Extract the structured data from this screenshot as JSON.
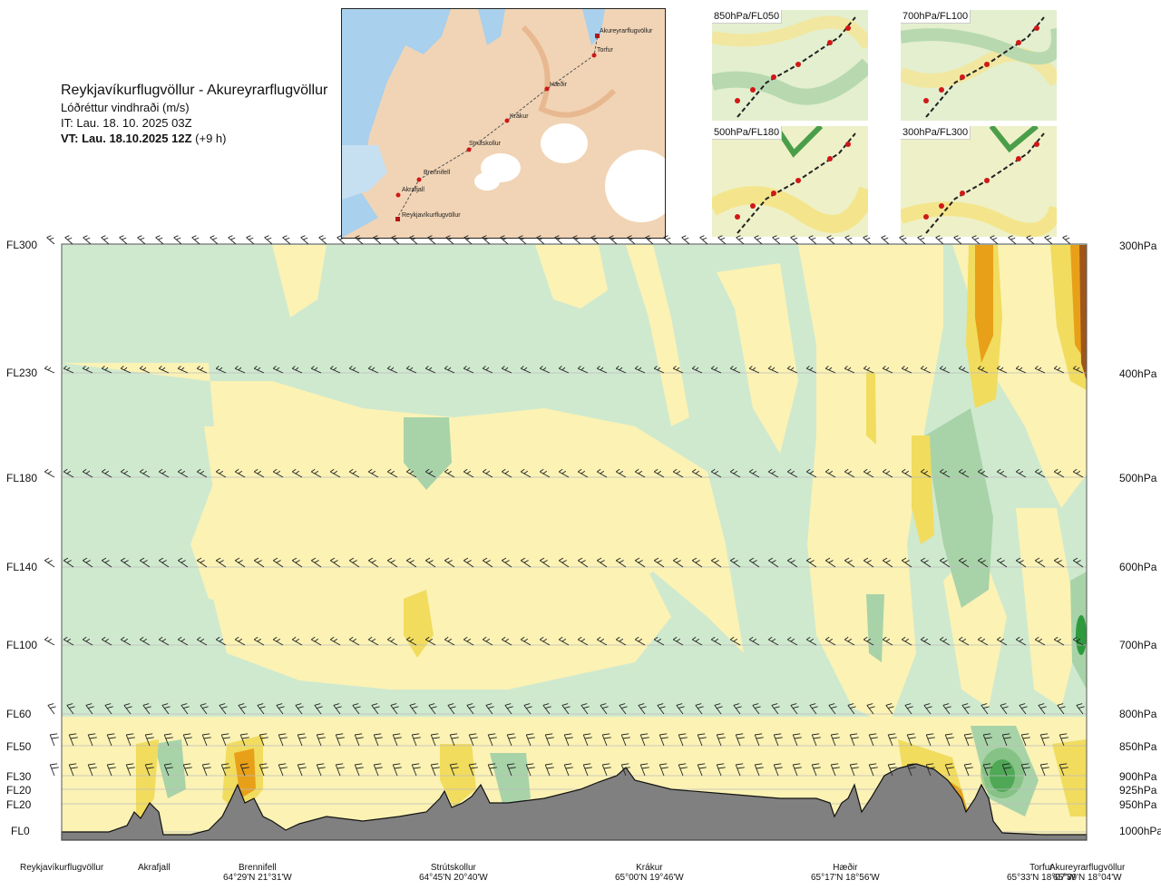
{
  "header": {
    "route": "Reykjavíkurflugvöllur - Akureyrarflugvöllur",
    "subtitle": "Lóðréttur vindhraði (m/s)",
    "issue_time": "IT: Lau. 18. 10. 2025 03Z",
    "valid_time": "VT: Lau. 18.10.2025 12Z",
    "valid_offset": "(+9 h)"
  },
  "route_map": {
    "waypoints": [
      "Akureyrarflugvöllur",
      "Torfur",
      "Hæðir",
      "Krákur",
      "Strútskollur",
      "Brennifell",
      "Akrafjall",
      "Reykjavíkurflugvöllur"
    ]
  },
  "insets": [
    {
      "label": "850hPa/FL050"
    },
    {
      "label": "700hPa/FL100"
    },
    {
      "label": "500hPa/FL180"
    },
    {
      "label": "300hPa/FL300"
    }
  ],
  "flight_levels": [
    "FL300",
    "FL230",
    "FL180",
    "FL140",
    "FL100",
    "FL60",
    "FL50",
    "FL30",
    "FL20",
    "FL20",
    "FL0"
  ],
  "pressure_levels": [
    "300hPa",
    "400hPa",
    "500hPa",
    "600hPa",
    "700hPa",
    "800hPa",
    "850hPa",
    "900hPa",
    "925hPa",
    "950hPa",
    "1000hPa"
  ],
  "locations": [
    {
      "name": "Reykjavíkurflugvöllur",
      "coord": ""
    },
    {
      "name": "Akrafjall",
      "coord": ""
    },
    {
      "name": "Brennifell",
      "coord": "64°29'N 21°31'W"
    },
    {
      "name": "Strútskollur",
      "coord": "64°45'N 20°40'W"
    },
    {
      "name": "Krákur",
      "coord": "65°00'N 19°46'W"
    },
    {
      "name": "Hæðir",
      "coord": "65°17'N 18°56'W"
    },
    {
      "name": "Torfur",
      "coord": "65°33'N 18°07'W"
    },
    {
      "name": "Akureyrarflugvöllur",
      "coord": "65°39'N 18°04'W"
    }
  ],
  "colors": {
    "light_green": "#cfe9cf",
    "mid_green": "#a8d3a8",
    "dark_green": "#2e9a3e",
    "pale_yellow": "#fbf2b4",
    "yellow": "#f1dc5e",
    "orange": "#e8a018",
    "brown": "#a0561a",
    "terrain": "#808080"
  }
}
